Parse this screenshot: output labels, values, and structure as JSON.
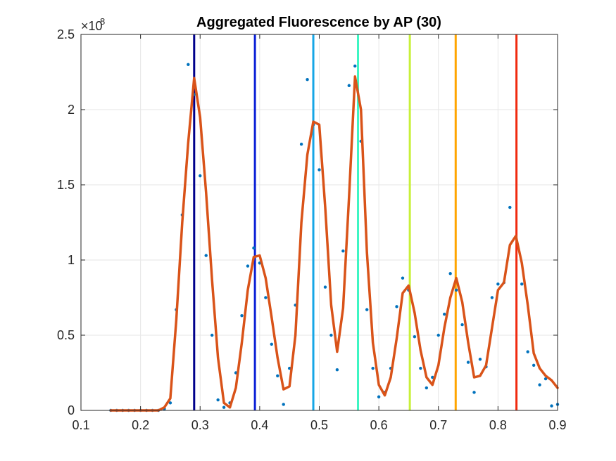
{
  "chart_data": {
    "type": "line",
    "title": "Aggregated Fluorescence by AP (30)",
    "xlabel": "",
    "ylabel": "",
    "xlim": [
      0.1,
      0.9
    ],
    "ylim": [
      0,
      2.5
    ],
    "y_exponent_label": "×10",
    "y_exponent_power": "8",
    "x_ticks": [
      "0.1",
      "0.2",
      "0.3",
      "0.4",
      "0.5",
      "0.6",
      "0.7",
      "0.8",
      "0.9"
    ],
    "y_ticks": [
      "0",
      "0.5",
      "1",
      "1.5",
      "2",
      "2.5"
    ],
    "grid": true,
    "series": [
      {
        "kind": "scatter",
        "color": "#0072BD",
        "x": [
          0.15,
          0.16,
          0.17,
          0.18,
          0.19,
          0.2,
          0.21,
          0.22,
          0.23,
          0.24,
          0.25,
          0.26,
          0.27,
          0.28,
          0.29,
          0.3,
          0.31,
          0.32,
          0.33,
          0.34,
          0.35,
          0.36,
          0.37,
          0.38,
          0.39,
          0.4,
          0.41,
          0.42,
          0.43,
          0.44,
          0.45,
          0.46,
          0.47,
          0.48,
          0.49,
          0.5,
          0.51,
          0.52,
          0.53,
          0.54,
          0.55,
          0.56,
          0.57,
          0.58,
          0.59,
          0.6,
          0.61,
          0.62,
          0.63,
          0.64,
          0.65,
          0.66,
          0.67,
          0.68,
          0.69,
          0.7,
          0.71,
          0.72,
          0.73,
          0.74,
          0.75,
          0.76,
          0.77,
          0.78,
          0.79,
          0.8,
          0.81,
          0.82,
          0.83,
          0.84,
          0.85,
          0.86,
          0.87,
          0.88,
          0.89,
          0.9
        ],
        "y": [
          0,
          0,
          0,
          0,
          0,
          0,
          0,
          0,
          0,
          0.01,
          0.05,
          0.67,
          1.3,
          2.3,
          2.1,
          1.56,
          1.03,
          0.5,
          0.07,
          0.02,
          0.05,
          0.25,
          0.63,
          0.96,
          1.08,
          0.98,
          0.75,
          0.44,
          0.23,
          0.04,
          0.28,
          0.7,
          1.77,
          2.2,
          1.9,
          1.6,
          0.82,
          0.5,
          0.27,
          1.06,
          2.16,
          2.29,
          1.79,
          0.67,
          0.28,
          0.09,
          0.12,
          0.28,
          0.69,
          0.88,
          0.8,
          0.49,
          0.28,
          0.15,
          0.22,
          0.5,
          0.64,
          0.91,
          0.8,
          0.57,
          0.32,
          0.12,
          0.34,
          0.29,
          0.75,
          0.84,
          0.85,
          1.35,
          1.15,
          0.84,
          0.39,
          0.3,
          0.17,
          0.21,
          0.03,
          0.04
        ]
      },
      {
        "kind": "line",
        "color": "#D95319",
        "x": [
          0.15,
          0.16,
          0.17,
          0.18,
          0.19,
          0.2,
          0.21,
          0.22,
          0.23,
          0.24,
          0.25,
          0.26,
          0.27,
          0.28,
          0.29,
          0.3,
          0.31,
          0.32,
          0.33,
          0.34,
          0.35,
          0.36,
          0.37,
          0.38,
          0.39,
          0.4,
          0.41,
          0.42,
          0.43,
          0.44,
          0.45,
          0.46,
          0.47,
          0.48,
          0.49,
          0.5,
          0.51,
          0.52,
          0.53,
          0.54,
          0.55,
          0.56,
          0.57,
          0.58,
          0.59,
          0.6,
          0.61,
          0.62,
          0.63,
          0.64,
          0.65,
          0.66,
          0.67,
          0.68,
          0.69,
          0.7,
          0.71,
          0.72,
          0.73,
          0.74,
          0.75,
          0.76,
          0.77,
          0.78,
          0.79,
          0.8,
          0.81,
          0.82,
          0.83,
          0.84,
          0.85,
          0.86,
          0.87,
          0.88,
          0.89,
          0.9
        ],
        "y": [
          0,
          0,
          0,
          0,
          0,
          0,
          0,
          0,
          0,
          0.02,
          0.08,
          0.6,
          1.25,
          1.78,
          2.21,
          1.95,
          1.45,
          0.87,
          0.35,
          0.05,
          0.02,
          0.15,
          0.45,
          0.8,
          1.02,
          1.03,
          0.88,
          0.62,
          0.35,
          0.14,
          0.16,
          0.5,
          1.25,
          1.7,
          1.92,
          1.9,
          1.35,
          0.7,
          0.39,
          0.68,
          1.42,
          2.22,
          2.0,
          1.05,
          0.45,
          0.17,
          0.1,
          0.22,
          0.48,
          0.78,
          0.83,
          0.65,
          0.4,
          0.22,
          0.17,
          0.3,
          0.55,
          0.75,
          0.88,
          0.72,
          0.45,
          0.22,
          0.23,
          0.3,
          0.55,
          0.8,
          0.85,
          1.1,
          1.16,
          0.98,
          0.7,
          0.38,
          0.28,
          0.23,
          0.2,
          0.15
        ]
      }
    ],
    "vertical_lines": [
      {
        "x": 0.29,
        "color": "#00008B"
      },
      {
        "x": 0.392,
        "color": "#0A1FD6"
      },
      {
        "x": 0.49,
        "color": "#16A6E6"
      },
      {
        "x": 0.565,
        "color": "#3EF5C3"
      },
      {
        "x": 0.652,
        "color": "#C8F03A"
      },
      {
        "x": 0.729,
        "color": "#FFA500"
      },
      {
        "x": 0.831,
        "color": "#F02A0F"
      }
    ]
  }
}
